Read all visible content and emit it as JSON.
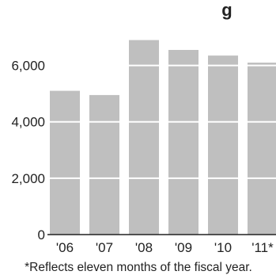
{
  "chart_data": {
    "type": "bar",
    "title_fragment": "g",
    "categories": [
      "'06",
      "'07",
      "'08",
      "'09",
      "'10",
      "'11*"
    ],
    "values": [
      5100,
      4950,
      6900,
      6550,
      6350,
      6100
    ],
    "yticks": [
      {
        "value": 0,
        "label": "0"
      },
      {
        "value": 2000,
        "label": "2,000"
      },
      {
        "value": 4000,
        "label": "4,000"
      },
      {
        "value": 6000,
        "label": "6,000"
      }
    ],
    "ylim": [
      0,
      7000
    ],
    "gridlines": true,
    "footnote": "*Reflects eleven months of the fiscal year."
  },
  "colors": {
    "bar": "#bfbfbf",
    "grid": "#ffffff",
    "axis": "#222222",
    "text": "#222222"
  }
}
